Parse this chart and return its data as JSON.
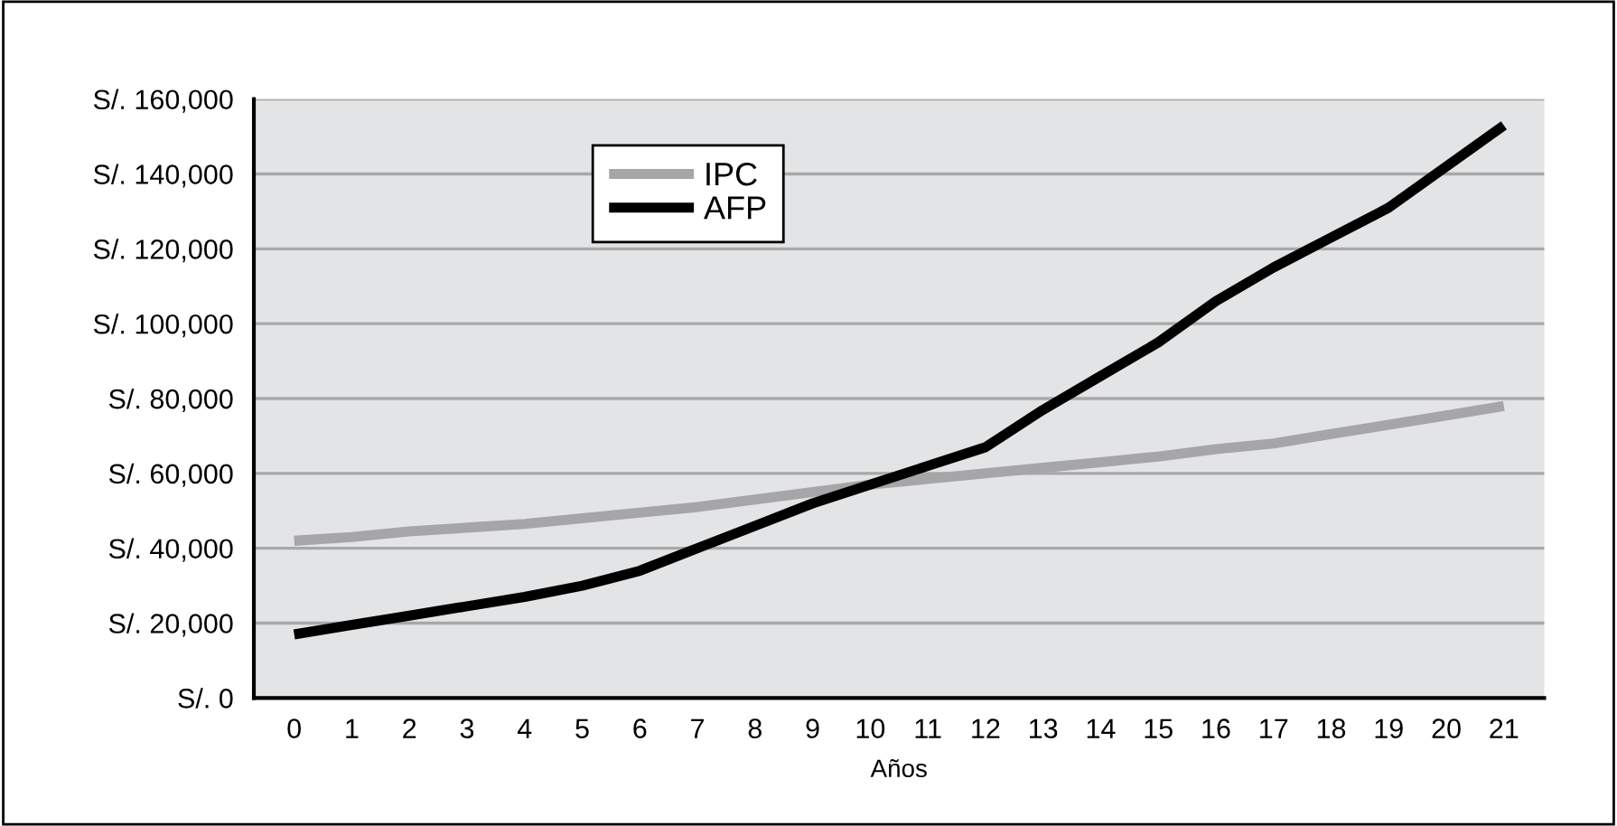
{
  "chart_data": {
    "type": "line",
    "xlabel": "Años",
    "categories": [
      "0",
      "1",
      "2",
      "3",
      "4",
      "5",
      "6",
      "7",
      "8",
      "9",
      "10",
      "11",
      "12",
      "13",
      "14",
      "15",
      "16",
      "17",
      "18",
      "19",
      "20",
      "21"
    ],
    "series": [
      {
        "name": "IPC",
        "color": "#a6a6a8",
        "values": [
          42000,
          43000,
          44500,
          45500,
          46500,
          48000,
          49500,
          51000,
          53000,
          55000,
          57000,
          58500,
          60000,
          61500,
          63000,
          64500,
          66500,
          68000,
          70500,
          73000,
          75500,
          78000
        ]
      },
      {
        "name": "AFP",
        "color": "#000000",
        "values": [
          17000,
          19500,
          22000,
          24500,
          27000,
          30000,
          34000,
          40000,
          46000,
          52000,
          57000,
          62000,
          67000,
          77000,
          86000,
          95000,
          106000,
          115000,
          123000,
          131000,
          142000,
          153000
        ]
      }
    ],
    "ylim": [
      0,
      160000
    ],
    "yticks": [
      {
        "value": 0,
        "label": "S/. 0"
      },
      {
        "value": 20000,
        "label": "S/. 20,000"
      },
      {
        "value": 40000,
        "label": "S/. 40,000"
      },
      {
        "value": 60000,
        "label": "S/. 60,000"
      },
      {
        "value": 80000,
        "label": "S/. 80,000"
      },
      {
        "value": 100000,
        "label": "S/. 100,000"
      },
      {
        "value": 120000,
        "label": "S/. 120,000"
      },
      {
        "value": 140000,
        "label": "S/. 140,000"
      },
      {
        "value": 160000,
        "label": "S/. 160,000"
      }
    ],
    "grid": "y",
    "legend": "top left",
    "line_style": "solid"
  }
}
